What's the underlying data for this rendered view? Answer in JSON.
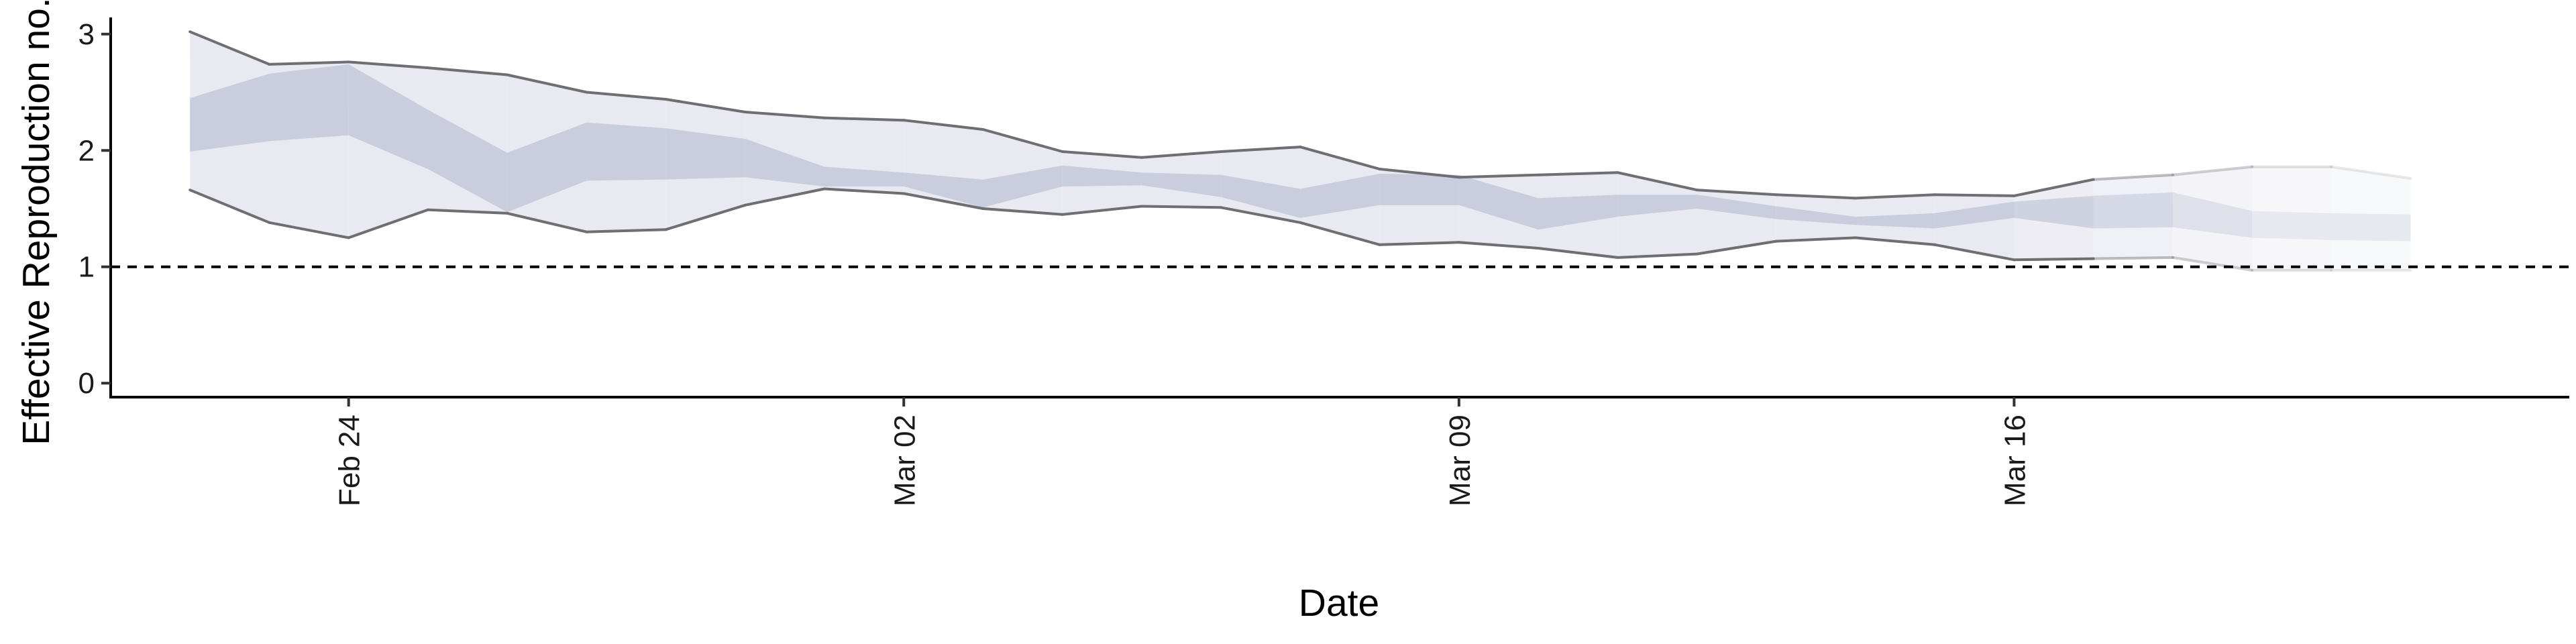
{
  "chart_data": {
    "type": "area",
    "xlabel": "Date",
    "ylabel": "Effective Reproduction no.",
    "x_ticks": [
      "Feb 24",
      "Mar 02",
      "Mar 09",
      "Mar 16"
    ],
    "x_tick_dates": [
      "2020-02-24",
      "2020-03-02",
      "2020-03-09",
      "2020-03-16"
    ],
    "y_ticks": [
      0,
      1,
      2,
      3
    ],
    "ylim": [
      -0.12,
      3.12
    ],
    "xlim": [
      "2020-02-21",
      "2020-03-23"
    ],
    "grid": false,
    "reference_line": {
      "y": 1,
      "style": "dashed"
    },
    "dates": [
      "2020-02-22",
      "2020-02-23",
      "2020-02-24",
      "2020-02-25",
      "2020-02-26",
      "2020-02-27",
      "2020-02-28",
      "2020-02-29",
      "2020-03-01",
      "2020-03-02",
      "2020-03-03",
      "2020-03-04",
      "2020-03-05",
      "2020-03-06",
      "2020-03-07",
      "2020-03-08",
      "2020-03-09",
      "2020-03-10",
      "2020-03-11",
      "2020-03-12",
      "2020-03-13",
      "2020-03-14",
      "2020-03-15",
      "2020-03-16",
      "2020-03-17",
      "2020-03-18",
      "2020-03-19",
      "2020-03-20",
      "2020-03-21"
    ],
    "series": [
      {
        "type": "ribbon",
        "lower": [
          1.66,
          1.38,
          1.25,
          1.49,
          1.46,
          1.3,
          1.32,
          1.53,
          1.67,
          1.63,
          1.5,
          1.45,
          1.52,
          1.51,
          1.38,
          1.19,
          1.21,
          1.16,
          1.08,
          1.11,
          1.22,
          1.25,
          1.19,
          1.06,
          1.07,
          1.08,
          0.97,
          0.97,
          0.97
        ],
        "upper": [
          3.02,
          2.74,
          2.76,
          2.71,
          2.65,
          2.5,
          2.44,
          2.33,
          2.28,
          2.26,
          2.18,
          1.99,
          1.94,
          1.99,
          2.03,
          1.84,
          1.77,
          1.79,
          1.81,
          1.66,
          1.62,
          1.59,
          1.62,
          1.61,
          1.75,
          1.79,
          1.86,
          1.86,
          1.76
        ]
      },
      {
        "type": "ribbon",
        "lower": [
          1.99,
          2.08,
          2.13,
          1.84,
          1.47,
          1.74,
          1.75,
          1.77,
          1.69,
          1.69,
          1.51,
          1.69,
          1.7,
          1.6,
          1.42,
          1.53,
          1.53,
          1.32,
          1.43,
          1.5,
          1.41,
          1.36,
          1.33,
          1.42,
          1.33,
          1.34,
          1.25,
          1.23,
          1.22
        ],
        "upper": [
          2.45,
          2.66,
          2.74,
          2.35,
          1.98,
          2.24,
          2.19,
          2.1,
          1.86,
          1.81,
          1.75,
          1.87,
          1.81,
          1.79,
          1.67,
          1.8,
          1.79,
          1.59,
          1.62,
          1.62,
          1.52,
          1.43,
          1.46,
          1.56,
          1.61,
          1.64,
          1.48,
          1.46,
          1.45
        ]
      }
    ],
    "outline": {
      "start": "2020-02-22",
      "end": "2020-03-17"
    }
  }
}
